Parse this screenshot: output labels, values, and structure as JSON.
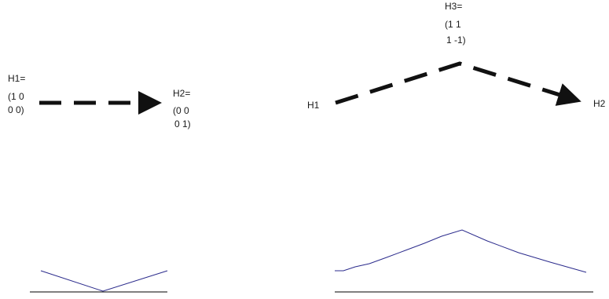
{
  "left_panel": {
    "start": {
      "lines": [
        "H1=",
        "(1 0",
        "0 0)"
      ]
    },
    "end": {
      "lines": [
        "H2=",
        "(0 0",
        "0 1)"
      ]
    }
  },
  "right_panel": {
    "start": {
      "lines": [
        "H1"
      ]
    },
    "middle": {
      "lines": [
        "H3=",
        "(1 1",
        "1 -1)"
      ]
    },
    "end": {
      "lines": [
        "H2"
      ]
    }
  },
  "colors": {
    "arrow": "#111111",
    "curve": "#2b2b8c",
    "axis": "#000000",
    "text": "#1a1a1a"
  }
}
